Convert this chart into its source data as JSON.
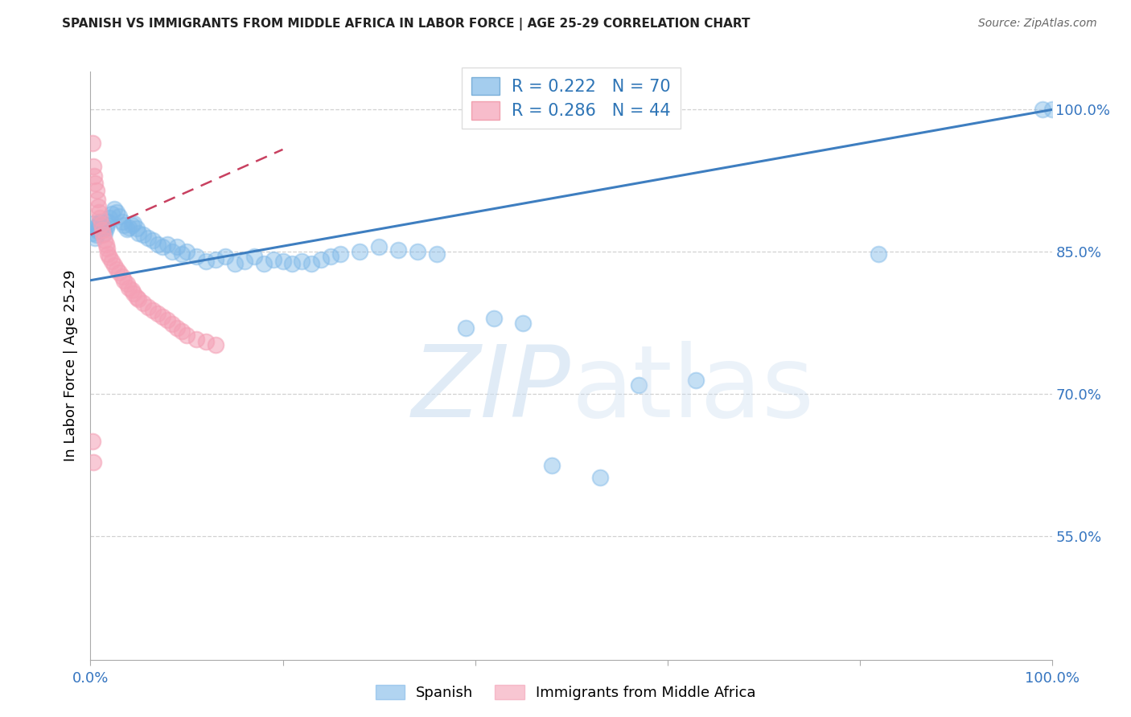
{
  "title": "SPANISH VS IMMIGRANTS FROM MIDDLE AFRICA IN LABOR FORCE | AGE 25-29 CORRELATION CHART",
  "source": "Source: ZipAtlas.com",
  "ylabel": "In Labor Force | Age 25-29",
  "blue_color": "#7EB8E8",
  "pink_color": "#F4A0B5",
  "blue_line_color": "#3E7EC0",
  "pink_line_color": "#C84060",
  "legend_blue_R": "R = 0.222",
  "legend_blue_N": "N = 70",
  "legend_pink_R": "R = 0.286",
  "legend_pink_N": "N = 44",
  "xlim": [
    0.0,
    1.0
  ],
  "ylim": [
    0.42,
    1.04
  ],
  "blue_x": [
    0.002,
    0.003,
    0.004,
    0.005,
    0.006,
    0.007,
    0.008,
    0.009,
    0.01,
    0.011,
    0.012,
    0.013,
    0.015,
    0.016,
    0.017,
    0.018,
    0.02,
    0.022,
    0.025,
    0.027,
    0.03,
    0.033,
    0.035,
    0.038,
    0.04,
    0.043,
    0.045,
    0.048,
    0.05,
    0.055,
    0.06,
    0.065,
    0.07,
    0.075,
    0.08,
    0.085,
    0.09,
    0.095,
    0.1,
    0.11,
    0.12,
    0.13,
    0.14,
    0.15,
    0.16,
    0.17,
    0.18,
    0.19,
    0.2,
    0.21,
    0.22,
    0.23,
    0.24,
    0.25,
    0.26,
    0.28,
    0.3,
    0.32,
    0.34,
    0.36,
    0.39,
    0.42,
    0.45,
    0.48,
    0.53,
    0.57,
    0.63,
    0.82,
    0.99,
    1.0
  ],
  "blue_y": [
    0.87,
    0.88,
    0.875,
    0.865,
    0.868,
    0.872,
    0.876,
    0.88,
    0.882,
    0.878,
    0.876,
    0.874,
    0.87,
    0.875,
    0.878,
    0.882,
    0.886,
    0.89,
    0.895,
    0.892,
    0.888,
    0.882,
    0.878,
    0.874,
    0.876,
    0.878,
    0.88,
    0.875,
    0.87,
    0.868,
    0.865,
    0.862,
    0.858,
    0.855,
    0.858,
    0.85,
    0.855,
    0.848,
    0.85,
    0.845,
    0.84,
    0.842,
    0.845,
    0.838,
    0.84,
    0.845,
    0.838,
    0.842,
    0.84,
    0.838,
    0.84,
    0.838,
    0.842,
    0.845,
    0.848,
    0.85,
    0.855,
    0.852,
    0.85,
    0.848,
    0.77,
    0.78,
    0.775,
    0.625,
    0.612,
    0.71,
    0.715,
    0.848,
    1.0,
    1.0
  ],
  "pink_x": [
    0.002,
    0.003,
    0.004,
    0.005,
    0.006,
    0.007,
    0.008,
    0.009,
    0.01,
    0.011,
    0.012,
    0.013,
    0.015,
    0.016,
    0.017,
    0.018,
    0.02,
    0.022,
    0.025,
    0.027,
    0.03,
    0.033,
    0.035,
    0.038,
    0.04,
    0.043,
    0.045,
    0.048,
    0.05,
    0.055,
    0.06,
    0.065,
    0.07,
    0.075,
    0.08,
    0.085,
    0.09,
    0.095,
    0.1,
    0.11,
    0.12,
    0.13,
    0.002,
    0.003
  ],
  "pink_y": [
    0.965,
    0.94,
    0.93,
    0.922,
    0.915,
    0.905,
    0.898,
    0.892,
    0.886,
    0.879,
    0.873,
    0.868,
    0.862,
    0.858,
    0.854,
    0.848,
    0.844,
    0.84,
    0.836,
    0.832,
    0.828,
    0.824,
    0.82,
    0.816,
    0.812,
    0.81,
    0.806,
    0.802,
    0.8,
    0.796,
    0.792,
    0.788,
    0.785,
    0.782,
    0.778,
    0.774,
    0.77,
    0.766,
    0.762,
    0.758,
    0.755,
    0.752,
    0.65,
    0.628
  ],
  "blue_trend_x": [
    0.0,
    1.0
  ],
  "blue_trend_y": [
    0.82,
    1.0
  ],
  "pink_trend_x": [
    0.0,
    0.2
  ],
  "pink_trend_y": [
    0.868,
    0.958
  ],
  "ytick_values": [
    0.55,
    0.7,
    0.85,
    1.0
  ],
  "ytick_labels": [
    "55.0%",
    "70.0%",
    "85.0%",
    "100.0%"
  ],
  "xtick_values": [
    0.0,
    0.2,
    0.4,
    0.6,
    0.8,
    1.0
  ],
  "xtick_labels": [
    "0.0%",
    "",
    "",
    "",
    "",
    "100.0%"
  ]
}
